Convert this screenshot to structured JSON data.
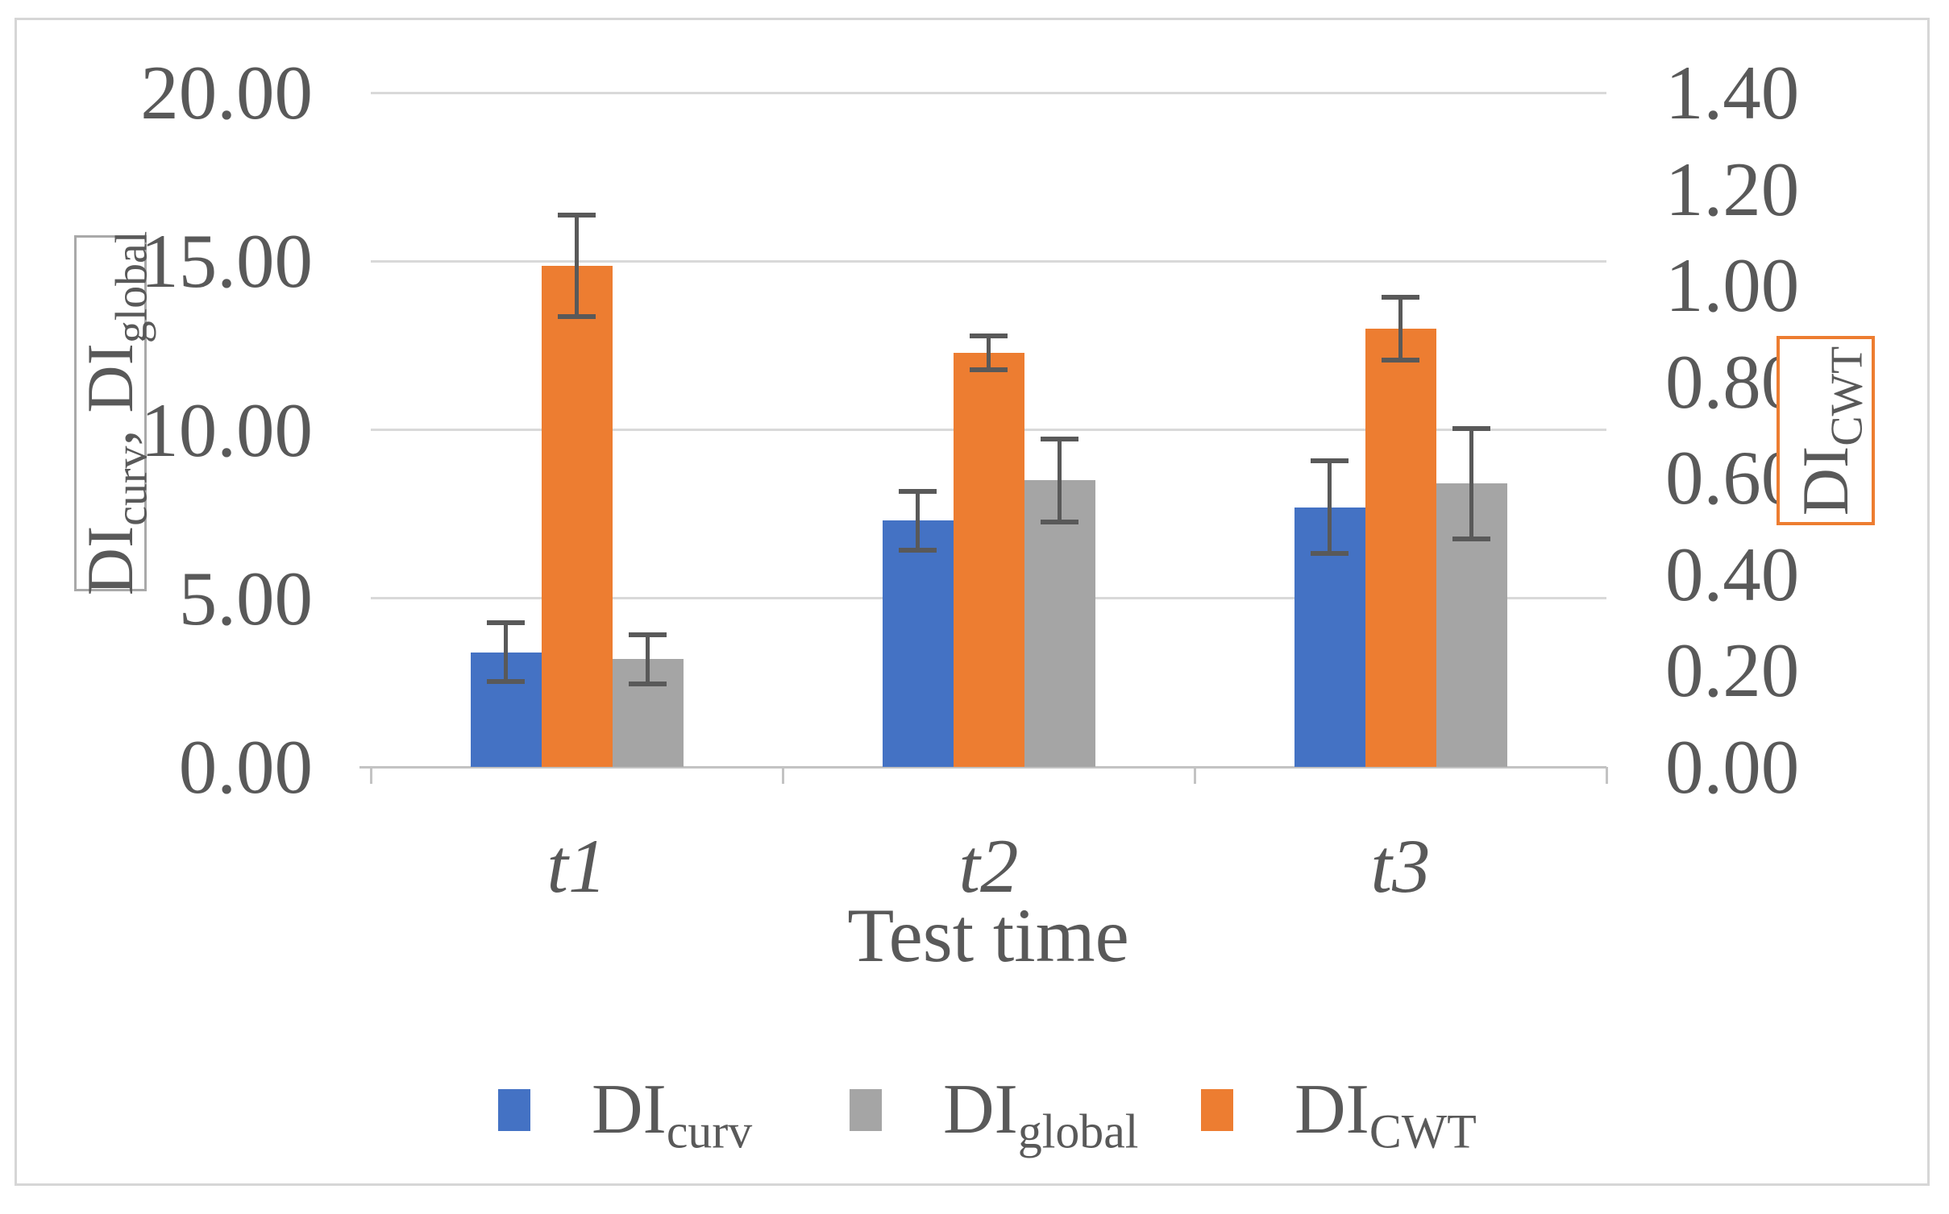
{
  "figure": {
    "background": "#FFFFFF",
    "border_color": "#D6D6D6"
  },
  "chart_data": {
    "type": "bar",
    "title": "",
    "xlabel": "Test time",
    "categories": [
      "t1",
      "t2",
      "t3"
    ],
    "grid": true,
    "legend_position": "bottom",
    "gridline_color": "#D9D9D9",
    "axis_line_color": "#C3C3C3",
    "error_bar_color": "#595959",
    "text_color": "#595959",
    "left_axis": {
      "range": [
        0,
        20
      ],
      "ticks": [
        "20.00",
        "15.00",
        "10.00",
        "5.00",
        "0.00"
      ],
      "title_parts": [
        {
          "text": "DI",
          "sub": "curv",
          "tail": ", "
        },
        {
          "text": "DI",
          "sub": "global",
          "tail": ""
        }
      ],
      "box_border_color": "#A9A9A9"
    },
    "right_axis": {
      "range": [
        0,
        1.4
      ],
      "ticks": [
        "1.40",
        "1.20",
        "1.00",
        "0.80",
        "0.60",
        "0.40",
        "0.20",
        "0.00"
      ],
      "title": {
        "text": "DI",
        "sub": "CWT"
      },
      "box_border_color": "#ED7D31"
    },
    "series": [
      {
        "name": "DI_curv",
        "color": "#4472C4",
        "axis": "left",
        "values": [
          3.4,
          7.3,
          7.7
        ],
        "errors": [
          0.95,
          0.95,
          1.45
        ]
      },
      {
        "name": "DI_CWT",
        "color": "#ED7D31",
        "axis": "right",
        "values": [
          1.04,
          0.86,
          0.91
        ],
        "errors": [
          0.11,
          0.04,
          0.07
        ]
      },
      {
        "name": "DI_global",
        "color": "#A5A5A5",
        "axis": "left",
        "values": [
          3.2,
          8.5,
          8.4
        ],
        "errors": [
          0.8,
          1.3,
          1.7
        ]
      }
    ]
  },
  "legend": {
    "items": [
      {
        "text": "DI",
        "sub": "curv",
        "color": "#4472C4"
      },
      {
        "text": "DI",
        "sub": "global",
        "color": "#A5A5A5"
      },
      {
        "text": "DI",
        "sub": "CWT",
        "color": "#ED7D31"
      }
    ]
  }
}
